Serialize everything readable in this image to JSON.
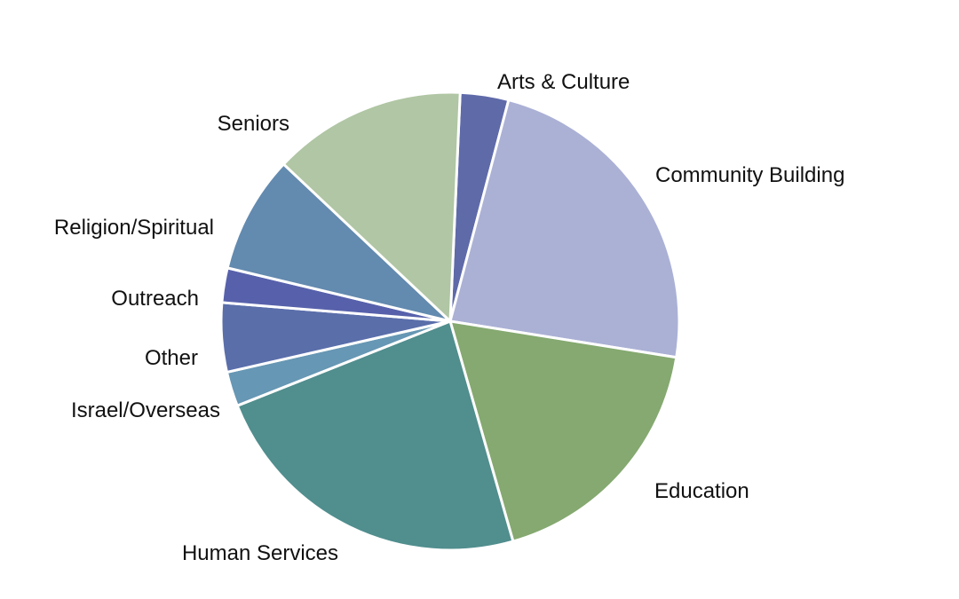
{
  "chart_data": {
    "type": "pie",
    "title": "",
    "start_angle_deg": 2.5,
    "direction": "clockwise",
    "slice_border_color": "#ffffff",
    "slices": [
      {
        "label": "Arts & Culture",
        "value": 3.5,
        "color": "#5f6aa9"
      },
      {
        "label": "Community Building",
        "value": 24.0,
        "color": "#abb1d5"
      },
      {
        "label": "Education",
        "value": 18.5,
        "color": "#85a970"
      },
      {
        "label": "Human Services",
        "value": 24.0,
        "color": "#518e8e"
      },
      {
        "label": "Israel/Overseas",
        "value": 2.5,
        "color": "#6697b4"
      },
      {
        "label": "Other",
        "value": 5.0,
        "color": "#5a6eaa"
      },
      {
        "label": "Outreach",
        "value": 2.5,
        "color": "#5761ab"
      },
      {
        "label": "Religion/Spiritual",
        "value": 8.5,
        "color": "#638aaf"
      },
      {
        "label": "Seniors",
        "value": 14.0,
        "color": "#b0c6a4"
      }
    ]
  }
}
